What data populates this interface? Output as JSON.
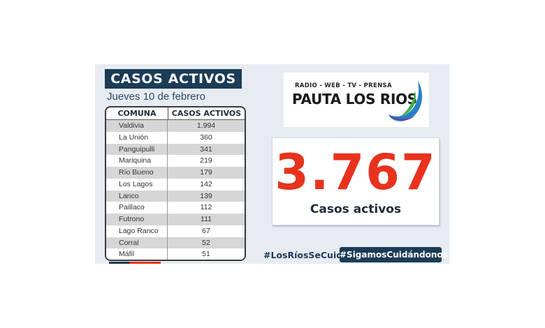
{
  "title": "CASOS ACTIVOS",
  "date": "Jueves 10 de febrero",
  "table": {
    "headers": [
      "COMUNA",
      "CASOS ACTIVOS"
    ],
    "rows": [
      [
        "Valdivia",
        "1.994"
      ],
      [
        "La Unión",
        "360"
      ],
      [
        "Panguipulli",
        "341"
      ],
      [
        "Mariquina",
        "219"
      ],
      [
        "Río Bueno",
        "179"
      ],
      [
        "Los Lagos",
        "142"
      ],
      [
        "Lanco",
        "139"
      ],
      [
        "Paillaco",
        "112"
      ],
      [
        "Futrono",
        "111"
      ],
      [
        "Lago Ranco",
        "67"
      ],
      [
        "Corral",
        "52"
      ],
      [
        "Máfil",
        "51"
      ]
    ]
  },
  "logo": {
    "tagline": "RADIO - WEB - TV - PRENSA",
    "name_part1": "PAUTA LOS ",
    "name_part2": "RIOS"
  },
  "total": {
    "value": "3.767",
    "label": "Casos activos"
  },
  "hashtags": [
    "#LosRíosSeCuida",
    "#SigamosCuidándonos"
  ],
  "colors": {
    "navy": "#1c3b56",
    "red": "#e8321e",
    "panel": "#e7ecf3"
  }
}
